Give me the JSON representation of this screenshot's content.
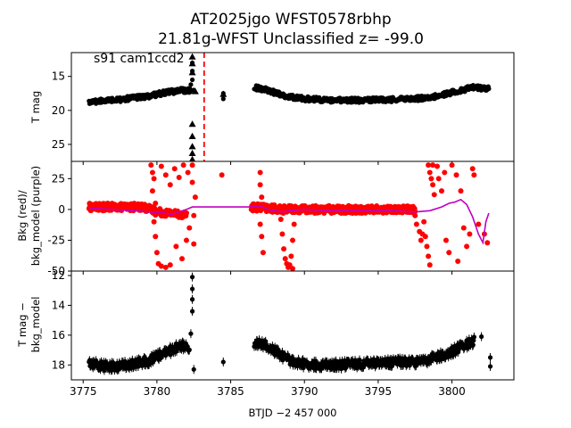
{
  "figure": {
    "title_line1": "AT2025jgo  WFST0578rbhp",
    "title_line2": "21.81g-WFST Unclassified z= -99.0"
  },
  "chart_data": [
    {
      "type": "scatter",
      "panel": "top",
      "ylabel": "T mag",
      "annotation": "s91 cam1ccd2",
      "y_inverted": true,
      "ylim": [
        27.5,
        11.5
      ],
      "yticks": [
        15,
        20,
        25
      ],
      "xlim": [
        3774.2,
        3804.2
      ],
      "vline": {
        "x": 3783.2,
        "color": "#ff0000",
        "style": "dashed"
      },
      "series": [
        {
          "marker": "circle",
          "color": "#000000",
          "segments": [
            {
              "x": [
                3775.4,
                3776.5,
                3777.5,
                3778.5,
                3779.5,
                3780.5,
                3781.5,
                3782.3
              ],
              "y": [
                18.8,
                18.6,
                18.4,
                18.1,
                17.9,
                17.4,
                17.1,
                17.0
              ]
            },
            {
              "x": [
                3786.6,
                3787.5,
                3788.5,
                3790,
                3792,
                3794,
                3796,
                3797.5,
                3799,
                3800.5,
                3801.5,
                3802.5
              ],
              "y": [
                16.6,
                17.0,
                17.8,
                18.3,
                18.5,
                18.5,
                18.4,
                18.3,
                17.9,
                17.1,
                16.6,
                16.8
              ]
            }
          ],
          "points": [
            {
              "x": 3782.4,
              "y": 13.0
            },
            {
              "x": 3782.4,
              "y": 14.2
            },
            {
              "x": 3782.4,
              "y": 15.5
            },
            {
              "x": 3782.3,
              "y": 16.2
            },
            {
              "x": 3782.5,
              "y": 17.0
            },
            {
              "x": 3784.5,
              "y": 17.5
            },
            {
              "x": 3784.5,
              "y": 18.3
            }
          ]
        },
        {
          "marker": "triangle",
          "color": "#000000",
          "points": [
            {
              "x": 3782.4,
              "y": 12.1
            },
            {
              "x": 3782.4,
              "y": 13.1
            },
            {
              "x": 3782.4,
              "y": 14.4
            },
            {
              "x": 3782.3,
              "y": 16.9
            },
            {
              "x": 3782.6,
              "y": 17.2
            },
            {
              "x": 3782.4,
              "y": 22.0
            },
            {
              "x": 3782.4,
              "y": 23.8
            },
            {
              "x": 3782.4,
              "y": 25.3
            },
            {
              "x": 3782.4,
              "y": 26.3
            },
            {
              "x": 3782.4,
              "y": 27.2
            },
            {
              "x": 3784.5,
              "y": 17.6
            }
          ]
        }
      ]
    },
    {
      "type": "scatter",
      "panel": "middle",
      "ylabel_line1": "Bkg (red)/",
      "ylabel_line2": "bkg_model (purple)",
      "ylim": [
        -50,
        39
      ],
      "yticks": [
        -50,
        -25,
        0,
        25
      ],
      "xlim": [
        3774.2,
        3804.2
      ],
      "series": [
        {
          "marker": "circle",
          "color": "#ff0000",
          "segments": [
            {
              "x": [
                3775.4,
                3777,
                3779,
                3779.6,
                3780,
                3781,
                3782
              ],
              "y": [
                2,
                2,
                2,
                0,
                -2,
                -3,
                -4
              ]
            },
            {
              "x": [
                3786.4,
                3787.5,
                3788.5,
                3790,
                3793,
                3796,
                3797.5
              ],
              "y": [
                2,
                1,
                0,
                0,
                0,
                0,
                0
              ]
            }
          ],
          "points": [
            {
              "x": 3779.6,
              "y": 36
            },
            {
              "x": 3779.7,
              "y": 30
            },
            {
              "x": 3779.8,
              "y": 25
            },
            {
              "x": 3779.7,
              "y": 15
            },
            {
              "x": 3779.9,
              "y": 5
            },
            {
              "x": 3779.8,
              "y": -10
            },
            {
              "x": 3779.9,
              "y": -22
            },
            {
              "x": 3780.0,
              "y": -35
            },
            {
              "x": 3780.1,
              "y": -44
            },
            {
              "x": 3780.3,
              "y": -46
            },
            {
              "x": 3780.6,
              "y": -47
            },
            {
              "x": 3780.9,
              "y": -45
            },
            {
              "x": 3780.3,
              "y": 35
            },
            {
              "x": 3780.6,
              "y": 28
            },
            {
              "x": 3780.9,
              "y": 20
            },
            {
              "x": 3781.2,
              "y": 33
            },
            {
              "x": 3781.5,
              "y": 26
            },
            {
              "x": 3781.8,
              "y": 36
            },
            {
              "x": 3782.1,
              "y": 30
            },
            {
              "x": 3782.4,
              "y": 22
            },
            {
              "x": 3781.3,
              "y": -30
            },
            {
              "x": 3781.7,
              "y": -40
            },
            {
              "x": 3782.0,
              "y": -25
            },
            {
              "x": 3782.2,
              "y": -15
            },
            {
              "x": 3782.5,
              "y": -28
            },
            {
              "x": 3782.4,
              "y": 36
            },
            {
              "x": 3782.6,
              "y": 10
            },
            {
              "x": 3782.5,
              "y": -5
            },
            {
              "x": 3784.4,
              "y": 28
            },
            {
              "x": 3787.0,
              "y": 30
            },
            {
              "x": 3787.0,
              "y": 20
            },
            {
              "x": 3787.1,
              "y": 10
            },
            {
              "x": 3787.0,
              "y": -12
            },
            {
              "x": 3787.1,
              "y": -22
            },
            {
              "x": 3787.2,
              "y": -35
            },
            {
              "x": 3788.4,
              "y": -8
            },
            {
              "x": 3788.5,
              "y": -20
            },
            {
              "x": 3788.6,
              "y": -32
            },
            {
              "x": 3788.7,
              "y": -40
            },
            {
              "x": 3788.8,
              "y": -44
            },
            {
              "x": 3788.9,
              "y": -47
            },
            {
              "x": 3789.0,
              "y": -45
            },
            {
              "x": 3789.1,
              "y": -38
            },
            {
              "x": 3789.2,
              "y": -25
            },
            {
              "x": 3789.3,
              "y": -12
            },
            {
              "x": 3789.2,
              "y": -48
            },
            {
              "x": 3797.5,
              "y": -5
            },
            {
              "x": 3797.6,
              "y": -12
            },
            {
              "x": 3797.8,
              "y": -18
            },
            {
              "x": 3797.9,
              "y": -25
            },
            {
              "x": 3798.0,
              "y": -20
            },
            {
              "x": 3798.1,
              "y": -10
            },
            {
              "x": 3798.2,
              "y": -22
            },
            {
              "x": 3798.3,
              "y": -30
            },
            {
              "x": 3798.4,
              "y": -38
            },
            {
              "x": 3798.5,
              "y": -45
            },
            {
              "x": 3798.4,
              "y": 36
            },
            {
              "x": 3798.5,
              "y": 30
            },
            {
              "x": 3798.6,
              "y": 25
            },
            {
              "x": 3798.7,
              "y": 20
            },
            {
              "x": 3798.8,
              "y": 12
            },
            {
              "x": 3798.7,
              "y": 36
            },
            {
              "x": 3799.0,
              "y": 35
            },
            {
              "x": 3799.1,
              "y": 25
            },
            {
              "x": 3799.3,
              "y": 15
            },
            {
              "x": 3799.5,
              "y": 30
            },
            {
              "x": 3799.6,
              "y": -25
            },
            {
              "x": 3799.8,
              "y": -35
            },
            {
              "x": 3800.0,
              "y": 36
            },
            {
              "x": 3800.3,
              "y": 28
            },
            {
              "x": 3800.6,
              "y": 15
            },
            {
              "x": 3800.8,
              "y": -15
            },
            {
              "x": 3801.0,
              "y": -30
            },
            {
              "x": 3801.2,
              "y": -20
            },
            {
              "x": 3801.4,
              "y": 33
            },
            {
              "x": 3801.5,
              "y": 28
            },
            {
              "x": 3800.4,
              "y": -42
            },
            {
              "x": 3802.2,
              "y": -20
            },
            {
              "x": 3802.4,
              "y": -27
            },
            {
              "x": 3801.8,
              "y": -12
            }
          ]
        },
        {
          "marker": "line",
          "color": "#bf00bf",
          "x": [
            3775.4,
            3777,
            3778.5,
            3779.5,
            3780.5,
            3781,
            3781.5,
            3782,
            3782.4,
            3783,
            3786.4,
            3787.0,
            3787.5,
            3788.0,
            3788.5,
            3789.0,
            3790,
            3792,
            3794,
            3796,
            3797.5,
            3798.5,
            3799.3,
            3799.8,
            3800.2,
            3800.6,
            3801.0,
            3801.4,
            3801.8,
            3802.1,
            3802.3,
            3802.5
          ],
          "y": [
            1,
            0,
            -1,
            -2,
            -3,
            -4,
            -2,
            0,
            2,
            2,
            2,
            3,
            0,
            -1,
            -2,
            -1,
            0,
            -1,
            -1,
            -1,
            -2,
            -1,
            2,
            5,
            6,
            8,
            4,
            -6,
            -20,
            -27,
            -10,
            -3
          ]
        }
      ]
    },
    {
      "type": "scatter",
      "panel": "bottom",
      "ylabel_line1": "T mag −",
      "ylabel_line2": "bkg_model",
      "xlabel": "BTJD −2 457 000",
      "y_inverted": true,
      "ylim": [
        19.0,
        11.7
      ],
      "yticks": [
        12,
        14,
        16,
        18
      ],
      "xlim": [
        3774.2,
        3804.2
      ],
      "xticks": [
        3775,
        3780,
        3785,
        3790,
        3795,
        3800
      ],
      "series": [
        {
          "marker": "circle",
          "color": "#000000",
          "segments": [
            {
              "x": [
                3775.4,
                3776.5,
                3777.5,
                3778.5,
                3779.5,
                3780.3,
                3781.0,
                3781.6,
                3782.2
              ],
              "y": [
                17.9,
                18.1,
                18.1,
                17.9,
                17.7,
                17.3,
                17.0,
                16.7,
                16.8
              ]
            },
            {
              "x": [
                3786.6,
                3787.5,
                3788.3,
                3789.2,
                3790.5,
                3792.5,
                3794.5,
                3796.5,
                3797.8,
                3799.0,
                3800.0,
                3800.8,
                3801.5
              ],
              "y": [
                16.5,
                16.7,
                17.3,
                17.8,
                18.0,
                18.0,
                17.9,
                17.8,
                17.8,
                17.5,
                17.1,
                16.7,
                16.4
              ]
            }
          ],
          "points": [
            {
              "x": 3782.4,
              "y": 12.1
            },
            {
              "x": 3782.4,
              "y": 12.9
            },
            {
              "x": 3782.4,
              "y": 13.6
            },
            {
              "x": 3782.4,
              "y": 14.4
            },
            {
              "x": 3782.5,
              "y": 18.3
            },
            {
              "x": 3782.3,
              "y": 15.9
            },
            {
              "x": 3784.5,
              "y": 17.8
            },
            {
              "x": 3802.0,
              "y": 16.1
            },
            {
              "x": 3802.6,
              "y": 17.5
            },
            {
              "x": 3802.6,
              "y": 18.1
            }
          ]
        }
      ]
    }
  ]
}
